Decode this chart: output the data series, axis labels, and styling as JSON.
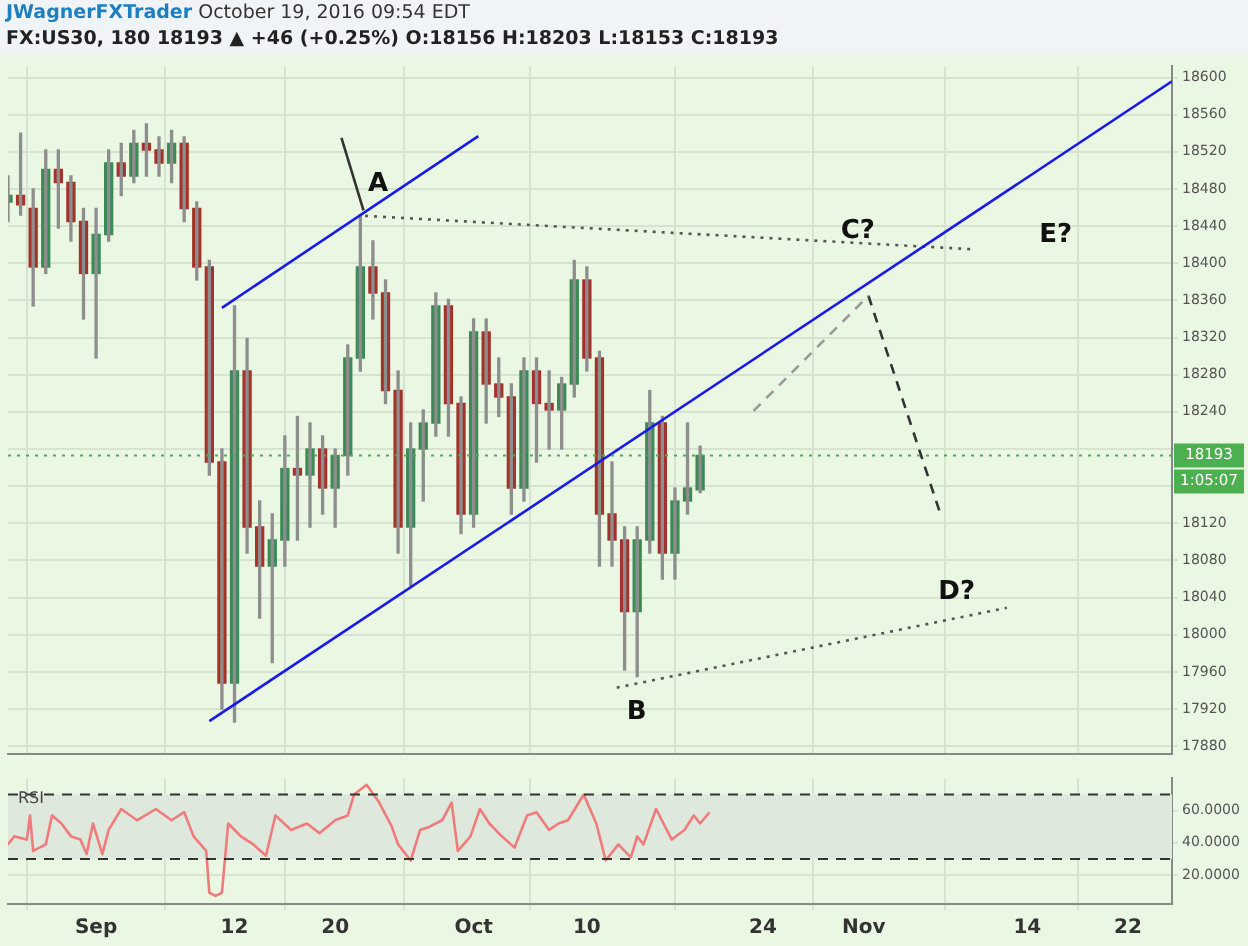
{
  "chart_data": [
    {
      "type": "candlestick",
      "title": "JWagnerFXTrader",
      "subtitle": "FX:US30, 180  18193 ▲ +46 (+0.25%)  O:18156  H:18203  L:18153  C:18193",
      "annotations": [
        "October 19, 2016 09:54 EDT",
        "1:05:07",
        "A",
        "B",
        "C?",
        "D?",
        "E?"
      ],
      "x": [
        "2016-08-25",
        "2016-08-26",
        "2016-08-27",
        "2016-08-28",
        "2016-08-29",
        "2016-08-30",
        "2016-08-31",
        "2016-09-01",
        "2016-09-02",
        "2016-09-03",
        "2016-09-04",
        "2016-09-05",
        "2016-09-06",
        "2016-09-07",
        "2016-09-08",
        "2016-09-09",
        "2016-09-10",
        "2016-09-11",
        "2016-09-12",
        "2016-09-13",
        "2016-09-14",
        "2016-09-15",
        "2016-09-16",
        "2016-09-17",
        "2016-09-18",
        "2016-09-19",
        "2016-09-20",
        "2016-09-21",
        "2016-09-22",
        "2016-09-23",
        "2016-09-24",
        "2016-09-25",
        "2016-09-26",
        "2016-09-27",
        "2016-09-28",
        "2016-09-29",
        "2016-09-30",
        "2016-10-01",
        "2016-10-02",
        "2016-10-03",
        "2016-10-04",
        "2016-10-05",
        "2016-10-06",
        "2016-10-07",
        "2016-10-08",
        "2016-10-09",
        "2016-10-10",
        "2016-10-11",
        "2016-10-12",
        "2016-10-13",
        "2016-10-14",
        "2016-10-15",
        "2016-10-16",
        "2016-10-17",
        "2016-10-18",
        "2016-10-19"
      ],
      "ohlc": [
        [
          18466,
          18494,
          18445,
          18473
        ],
        [
          18473,
          18540,
          18452,
          18463
        ],
        [
          18459,
          18480,
          18354,
          18396
        ],
        [
          18396,
          18522,
          18389,
          18501
        ],
        [
          18501,
          18522,
          18438,
          18487
        ],
        [
          18487,
          18494,
          18424,
          18445
        ],
        [
          18445,
          18459,
          18340,
          18389
        ],
        [
          18389,
          18459,
          18298,
          18431
        ],
        [
          18431,
          18522,
          18424,
          18508
        ],
        [
          18508,
          18529,
          18473,
          18494
        ],
        [
          18494,
          18543,
          18487,
          18529
        ],
        [
          18529,
          18550,
          18494,
          18522
        ],
        [
          18522,
          18536,
          18494,
          18508
        ],
        [
          18508,
          18543,
          18487,
          18529
        ],
        [
          18529,
          18536,
          18445,
          18459
        ],
        [
          18459,
          18466,
          18382,
          18396
        ],
        [
          18396,
          18403,
          18172,
          18186
        ],
        [
          18186,
          18200,
          17920,
          17948
        ],
        [
          17948,
          18354,
          17906,
          18284
        ],
        [
          18284,
          18319,
          18088,
          18116
        ],
        [
          18116,
          18144,
          18018,
          18074
        ],
        [
          18074,
          18130,
          17970,
          18102
        ],
        [
          18102,
          18214,
          18074,
          18179
        ],
        [
          18179,
          18235,
          18102,
          18172
        ],
        [
          18172,
          18228,
          18116,
          18200
        ],
        [
          18200,
          18214,
          18130,
          18158
        ],
        [
          18158,
          18200,
          18116,
          18193
        ],
        [
          18193,
          18312,
          18172,
          18298
        ],
        [
          18298,
          18452,
          18284,
          18396
        ],
        [
          18396,
          18424,
          18340,
          18368
        ],
        [
          18368,
          18382,
          18249,
          18263
        ],
        [
          18263,
          18284,
          18088,
          18116
        ],
        [
          18116,
          18228,
          18053,
          18200
        ],
        [
          18200,
          18242,
          18144,
          18228
        ],
        [
          18228,
          18368,
          18214,
          18354
        ],
        [
          18354,
          18361,
          18214,
          18249
        ],
        [
          18249,
          18256,
          18109,
          18130
        ],
        [
          18130,
          18340,
          18116,
          18326
        ],
        [
          18326,
          18340,
          18228,
          18270
        ],
        [
          18270,
          18298,
          18235,
          18256
        ],
        [
          18256,
          18270,
          18130,
          18158
        ],
        [
          18158,
          18298,
          18144,
          18284
        ],
        [
          18284,
          18298,
          18186,
          18249
        ],
        [
          18249,
          18284,
          18200,
          18242
        ],
        [
          18242,
          18277,
          18200,
          18270
        ],
        [
          18270,
          18403,
          18256,
          18382
        ],
        [
          18382,
          18396,
          18284,
          18298
        ],
        [
          18298,
          18305,
          18074,
          18130
        ],
        [
          18130,
          18186,
          18074,
          18102
        ],
        [
          18102,
          18116,
          17962,
          18025
        ],
        [
          18025,
          18116,
          17955,
          18102
        ],
        [
          18102,
          18263,
          18088,
          18228
        ],
        [
          18228,
          18235,
          18060,
          18088
        ],
        [
          18088,
          18158,
          18060,
          18144
        ],
        [
          18144,
          18228,
          18130,
          18158
        ],
        [
          18156,
          18203,
          18153,
          18193
        ]
      ],
      "series": [
        {
          "type": "line",
          "color": "#1a1ae6",
          "line_style": "solid",
          "x": [
            "2016-09-10",
            "2016-11-25T12:00"
          ],
          "values": [
            17907,
            18596
          ]
        },
        {
          "type": "line",
          "color": "#1a1ae6",
          "line_style": "solid",
          "x": [
            "2016-09-11",
            "2016-10-01T09:00"
          ],
          "values": [
            18352,
            18537
          ]
        },
        {
          "type": "line",
          "color": "#555555",
          "line_style": "dotted",
          "x": [
            "2016-09-22T09:00",
            "2016-11-09T18:00"
          ],
          "values": [
            18451,
            18415
          ]
        },
        {
          "type": "line",
          "color": "#555555",
          "line_style": "dotted",
          "x": [
            "2016-10-12T09:00",
            "2016-11-12T09:00"
          ],
          "values": [
            17943,
            18029
          ]
        },
        {
          "type": "line",
          "color": "#999999",
          "line_style": "dashed",
          "x": [
            "2016-10-23T06:00",
            "2016-11-01T09:00"
          ],
          "values": [
            18241,
            18365
          ]
        },
        {
          "type": "line",
          "color": "#333333",
          "line_style": "dashed",
          "x": [
            "2016-11-01T09:00",
            "2016-11-07"
          ],
          "values": [
            18365,
            18134
          ]
        },
        {
          "type": "line",
          "color": "#333333",
          "line_style": "solid",
          "x": [
            "2016-09-20T12:00",
            "2016-09-22T06:00"
          ],
          "values": [
            18535,
            18457
          ]
        }
      ],
      "ref_lines": [
        {
          "axis": "y",
          "value": 18193,
          "label": "18193",
          "color": "#4caf50",
          "line_style": "dotted"
        }
      ],
      "xlim": [
        "2016-08-25",
        "2016-11-25T12:00"
      ],
      "xticks": [
        {
          "value": "2016-09-01",
          "label": null
        },
        {
          "value": "2016-09-12",
          "label": null
        },
        {
          "value": "2016-09-20",
          "label": null
        },
        {
          "value": "2016-10-01",
          "label": null
        },
        {
          "value": "2016-10-10",
          "label": null
        },
        {
          "value": "2016-10-24",
          "label": null
        },
        {
          "value": "2016-11-01",
          "label": null
        },
        {
          "value": "2016-11-14",
          "label": null
        },
        {
          "value": "2016-11-22",
          "label": null
        }
      ],
      "ylim": [
        17872,
        18612
      ],
      "yticks": [
        17880,
        17920,
        17960,
        18000,
        18040,
        18080,
        18120,
        {
          "value": 18160,
          "label": null
        },
        {
          "value": 18200,
          "label": null
        },
        18240,
        18280,
        18320,
        18360,
        18400,
        18440,
        18480,
        18520,
        18560,
        18600
      ],
      "grid": true,
      "tick_labels": "y"
    },
    {
      "type": "line",
      "title": "RSI",
      "x": [
        "2016-08-25",
        "2016-08-25T12:00",
        "2016-08-26T12:00",
        "2016-08-26T18:00",
        "2016-08-27",
        "2016-08-28",
        "2016-08-28T12:00",
        "2016-08-29T06:00",
        "2016-08-30",
        "2016-08-30T18:00",
        "2016-08-31T06:00",
        "2016-08-31T18:00",
        "2016-09-01T12:00",
        "2016-09-02",
        "2016-09-03",
        "2016-09-04T06:00",
        "2016-09-05T18:00",
        "2016-09-07",
        "2016-09-08",
        "2016-09-08T18:00",
        "2016-09-09T18:00",
        "2016-09-10",
        "2016-09-10T12:00",
        "2016-09-11",
        "2016-09-11T12:00",
        "2016-09-12T12:00",
        "2016-09-13T12:00",
        "2016-09-14T12:00",
        "2016-09-15T06:00",
        "2016-09-16T12:00",
        "2016-09-17T18:00",
        "2016-09-18T18:00",
        "2016-09-20",
        "2016-09-21",
        "2016-09-21T12:00",
        "2016-09-22T12:00",
        "2016-09-23T12:00",
        "2016-09-24T12:00",
        "2016-09-25",
        "2016-09-26",
        "2016-09-26T18:00",
        "2016-09-27T12:00",
        "2016-09-28T12:00",
        "2016-09-29T06:00",
        "2016-09-29T18:00",
        "2016-09-30T18:00",
        "2016-10-01T12:00",
        "2016-10-02T06:00",
        "2016-10-03T06:00",
        "2016-10-04T06:00",
        "2016-10-05T06:00",
        "2016-10-06",
        "2016-10-07",
        "2016-10-07T18:00",
        "2016-10-08T12:00",
        "2016-10-09T18:00",
        "2016-10-10T18:00",
        "2016-10-11T12:00",
        "2016-10-12T12:00",
        "2016-10-13T12:00",
        "2016-10-14",
        "2016-10-14T12:00",
        "2016-10-15T12:00",
        "2016-10-16T18:00",
        "2016-10-17T18:00",
        "2016-10-18T12:00",
        "2016-10-19",
        "2016-10-19T18:00"
      ],
      "series": [
        {
          "color": "#ef7b7b",
          "values": [
            39,
            44,
            42,
            57,
            35,
            39,
            57,
            52,
            44,
            42,
            33,
            52,
            33,
            48,
            61,
            54,
            61,
            54,
            59,
            44,
            35,
            9,
            7,
            9,
            52,
            44,
            39,
            32,
            57,
            48,
            52,
            46,
            54,
            57,
            70,
            76,
            65,
            50,
            39,
            29,
            48,
            50,
            54,
            65,
            35,
            44,
            61,
            52,
            44,
            37,
            57,
            59,
            48,
            52,
            54,
            70,
            52,
            29,
            39,
            31,
            44,
            39,
            61,
            42,
            48,
            57,
            52,
            59
          ]
        }
      ],
      "ref_lines": [
        {
          "axis": "y",
          "value": 70,
          "color": "#333333",
          "line_style": "dashed"
        },
        {
          "axis": "y",
          "value": 30,
          "color": "#333333",
          "line_style": "dashed"
        }
      ],
      "bands": [
        {
          "axis": "y",
          "from": 30,
          "to": 70,
          "color": "#dfe8dc"
        }
      ],
      "xlim": [
        "2016-08-25",
        "2016-11-25T12:00"
      ],
      "xticks": [
        {
          "value": "2016-09-01",
          "label": "Sep"
        },
        {
          "value": "2016-09-12",
          "label": "12"
        },
        {
          "value": "2016-09-20",
          "label": "20"
        },
        {
          "value": "2016-10-01",
          "label": "Oct"
        },
        {
          "value": "2016-10-10",
          "label": "10"
        },
        {
          "value": "2016-10-24",
          "label": "24"
        },
        {
          "value": "2016-11-01",
          "label": "Nov"
        },
        {
          "value": "2016-11-14",
          "label": "14"
        },
        {
          "value": "2016-11-22",
          "label": "22"
        }
      ],
      "ylim": [
        2,
        80
      ],
      "yticks": [
        {
          "value": 20,
          "label": "20.0000"
        },
        {
          "value": 40,
          "label": "40.0000"
        },
        {
          "value": 60,
          "label": "60.0000"
        }
      ],
      "grid": true
    }
  ]
}
